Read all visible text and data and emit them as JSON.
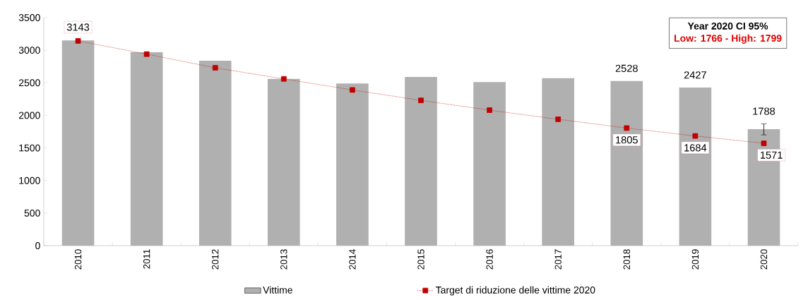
{
  "chart_data": {
    "type": "bar",
    "categories": [
      "2010",
      "2011",
      "2012",
      "2013",
      "2014",
      "2015",
      "2016",
      "2017",
      "2018",
      "2019",
      "2020"
    ],
    "series": [
      {
        "name": "Vittime",
        "color": "#b0b0b0",
        "values": [
          3150,
          2970,
          2840,
          2560,
          2490,
          2590,
          2510,
          2570,
          2528,
          2427,
          1788
        ],
        "value_labels": [
          null,
          null,
          null,
          null,
          null,
          null,
          null,
          null,
          "2528",
          "2427",
          "1788"
        ],
        "errors": [
          null,
          null,
          null,
          null,
          null,
          null,
          null,
          null,
          null,
          null,
          [
            1700,
            1870
          ]
        ]
      },
      {
        "name": "Target di riduzione delle vittime 2020",
        "type": "line",
        "color": "#c00000",
        "marker": "square",
        "line_style": "dotted",
        "values": [
          3143,
          2940,
          2730,
          2560,
          2390,
          2230,
          2080,
          1940,
          1805,
          1684,
          1571
        ],
        "value_labels": [
          "3143",
          null,
          null,
          null,
          null,
          null,
          null,
          null,
          "1805",
          "1684",
          "1571"
        ]
      }
    ],
    "ylim": [
      0,
      3500
    ],
    "yticks": [
      0,
      500,
      1000,
      1500,
      2000,
      2500,
      3000,
      3500
    ],
    "annotations": [
      "Year 2020 CI 95%",
      "Low: 1766 - High: 1799"
    ],
    "grid": false,
    "legend": "bottom"
  }
}
